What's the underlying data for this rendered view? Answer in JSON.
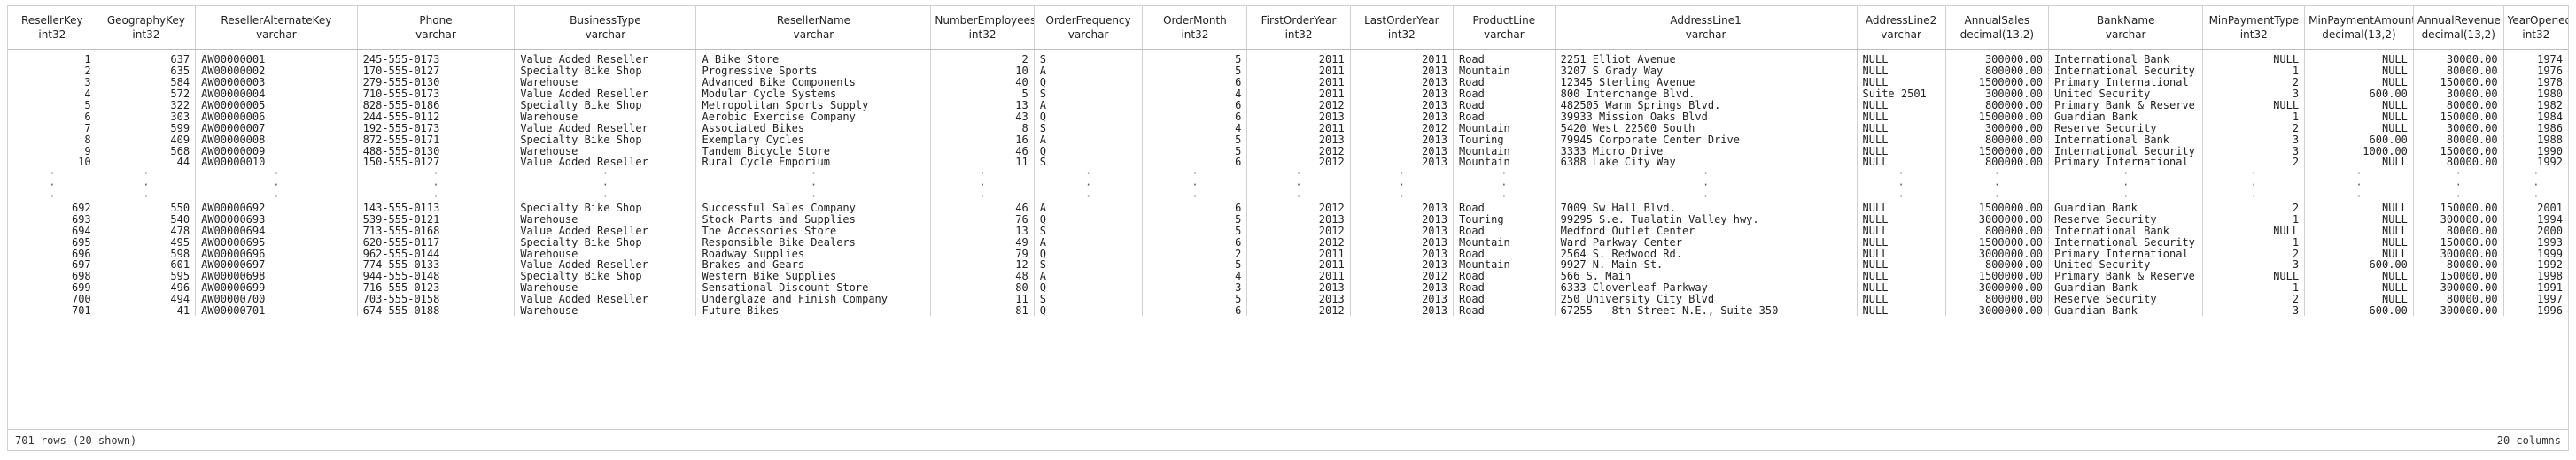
{
  "columns": [
    {
      "name": "ResellerKey",
      "type": "int32",
      "align": "r"
    },
    {
      "name": "GeographyKey",
      "type": "int32",
      "align": "r"
    },
    {
      "name": "ResellerAlternateKey",
      "type": "varchar",
      "align": "l"
    },
    {
      "name": "Phone",
      "type": "varchar",
      "align": "l"
    },
    {
      "name": "BusinessType",
      "type": "varchar",
      "align": "l"
    },
    {
      "name": "ResellerName",
      "type": "varchar",
      "align": "l"
    },
    {
      "name": "NumberEmployees",
      "type": "int32",
      "align": "r"
    },
    {
      "name": "OrderFrequency",
      "type": "varchar",
      "align": "l"
    },
    {
      "name": "OrderMonth",
      "type": "int32",
      "align": "r"
    },
    {
      "name": "FirstOrderYear",
      "type": "int32",
      "align": "r"
    },
    {
      "name": "LastOrderYear",
      "type": "int32",
      "align": "r"
    },
    {
      "name": "ProductLine",
      "type": "varchar",
      "align": "l"
    },
    {
      "name": "AddressLine1",
      "type": "varchar",
      "align": "l"
    },
    {
      "name": "AddressLine2",
      "type": "varchar",
      "align": "l"
    },
    {
      "name": "AnnualSales",
      "type": "decimal(13,2)",
      "align": "r"
    },
    {
      "name": "BankName",
      "type": "varchar",
      "align": "l"
    },
    {
      "name": "MinPaymentType",
      "type": "int32",
      "align": "r"
    },
    {
      "name": "MinPaymentAmount",
      "type": "decimal(13,2)",
      "align": "r"
    },
    {
      "name": "AnnualRevenue",
      "type": "decimal(13,2)",
      "align": "r"
    },
    {
      "name": "YearOpened",
      "type": "int32",
      "align": "r"
    }
  ],
  "rows_top": [
    [
      "1",
      "637",
      "AW00000001",
      "245-555-0173",
      "Value Added Reseller",
      "A Bike Store",
      "2",
      "S",
      "5",
      "2011",
      "2011",
      "Road",
      "2251 Elliot Avenue",
      "NULL",
      "300000.00",
      "International Bank",
      "NULL",
      "NULL",
      "30000.00",
      "1974"
    ],
    [
      "2",
      "635",
      "AW00000002",
      "170-555-0127",
      "Specialty Bike Shop",
      "Progressive Sports",
      "10",
      "A",
      "5",
      "2011",
      "2013",
      "Mountain",
      "3207 S Grady Way",
      "NULL",
      "800000.00",
      "International Security",
      "1",
      "NULL",
      "80000.00",
      "1976"
    ],
    [
      "3",
      "584",
      "AW00000003",
      "279-555-0130",
      "Warehouse",
      "Advanced Bike Components",
      "40",
      "Q",
      "6",
      "2011",
      "2013",
      "Road",
      "12345 Sterling Avenue",
      "NULL",
      "1500000.00",
      "Primary International",
      "2",
      "NULL",
      "150000.00",
      "1978"
    ],
    [
      "4",
      "572",
      "AW00000004",
      "710-555-0173",
      "Value Added Reseller",
      "Modular Cycle Systems",
      "5",
      "S",
      "4",
      "2011",
      "2013",
      "Road",
      "800 Interchange Blvd.",
      "Suite 2501",
      "300000.00",
      "United Security",
      "3",
      "600.00",
      "30000.00",
      "1980"
    ],
    [
      "5",
      "322",
      "AW00000005",
      "828-555-0186",
      "Specialty Bike Shop",
      "Metropolitan Sports Supply",
      "13",
      "A",
      "6",
      "2012",
      "2013",
      "Road",
      "482505 Warm Springs Blvd.",
      "NULL",
      "800000.00",
      "Primary Bank & Reserve",
      "NULL",
      "NULL",
      "80000.00",
      "1982"
    ],
    [
      "6",
      "303",
      "AW00000006",
      "244-555-0112",
      "Warehouse",
      "Aerobic Exercise Company",
      "43",
      "Q",
      "6",
      "2013",
      "2013",
      "Road",
      "39933 Mission Oaks Blvd",
      "NULL",
      "1500000.00",
      "Guardian Bank",
      "1",
      "NULL",
      "150000.00",
      "1984"
    ],
    [
      "7",
      "599",
      "AW00000007",
      "192-555-0173",
      "Value Added Reseller",
      "Associated Bikes",
      "8",
      "S",
      "4",
      "2011",
      "2012",
      "Mountain",
      "5420 West 22500 South",
      "NULL",
      "300000.00",
      "Reserve Security",
      "2",
      "NULL",
      "30000.00",
      "1986"
    ],
    [
      "8",
      "409",
      "AW00000008",
      "872-555-0171",
      "Specialty Bike Shop",
      "Exemplary Cycles",
      "16",
      "A",
      "5",
      "2013",
      "2013",
      "Touring",
      "79945 Corporate Center Drive",
      "NULL",
      "800000.00",
      "International Bank",
      "3",
      "600.00",
      "80000.00",
      "1988"
    ],
    [
      "9",
      "568",
      "AW00000009",
      "488-555-0130",
      "Warehouse",
      "Tandem Bicycle Store",
      "46",
      "Q",
      "5",
      "2012",
      "2013",
      "Mountain",
      "3333 Micro Drive",
      "NULL",
      "1500000.00",
      "International Security",
      "3",
      "1000.00",
      "150000.00",
      "1990"
    ],
    [
      "10",
      "44",
      "AW00000010",
      "150-555-0127",
      "Value Added Reseller",
      "Rural Cycle Emporium",
      "11",
      "S",
      "6",
      "2012",
      "2013",
      "Mountain",
      "6388 Lake City Way",
      "NULL",
      "800000.00",
      "Primary International",
      "2",
      "NULL",
      "80000.00",
      "1992"
    ]
  ],
  "rows_bottom": [
    [
      "692",
      "550",
      "AW00000692",
      "143-555-0113",
      "Specialty Bike Shop",
      "Successful Sales Company",
      "46",
      "A",
      "6",
      "2012",
      "2013",
      "Road",
      "7009 Sw Hall Blvd.",
      "NULL",
      "1500000.00",
      "Guardian Bank",
      "2",
      "NULL",
      "150000.00",
      "2001"
    ],
    [
      "693",
      "540",
      "AW00000693",
      "539-555-0121",
      "Warehouse",
      "Stock Parts and Supplies",
      "76",
      "Q",
      "5",
      "2013",
      "2013",
      "Touring",
      "99295 S.e. Tualatin Valley_hwy.",
      "NULL",
      "3000000.00",
      "Reserve Security",
      "1",
      "NULL",
      "300000.00",
      "1994"
    ],
    [
      "694",
      "478",
      "AW00000694",
      "713-555-0168",
      "Value Added Reseller",
      "The Accessories Store",
      "13",
      "S",
      "5",
      "2012",
      "2013",
      "Road",
      "Medford Outlet Center",
      "NULL",
      "800000.00",
      "International Bank",
      "NULL",
      "NULL",
      "80000.00",
      "2000"
    ],
    [
      "695",
      "495",
      "AW00000695",
      "620-555-0117",
      "Specialty Bike Shop",
      "Responsible Bike Dealers",
      "49",
      "A",
      "6",
      "2012",
      "2013",
      "Mountain",
      "Ward Parkway Center",
      "NULL",
      "1500000.00",
      "International Security",
      "1",
      "NULL",
      "150000.00",
      "1993"
    ],
    [
      "696",
      "598",
      "AW00000696",
      "962-555-0144",
      "Warehouse",
      "Roadway Supplies",
      "79",
      "Q",
      "2",
      "2011",
      "2013",
      "Road",
      "2564 S. Redwood Rd.",
      "NULL",
      "3000000.00",
      "Primary International",
      "2",
      "NULL",
      "300000.00",
      "1999"
    ],
    [
      "697",
      "601",
      "AW00000697",
      "774-555-0133",
      "Value Added Reseller",
      "Brakes and Gears",
      "12",
      "S",
      "5",
      "2011",
      "2013",
      "Mountain",
      "9927 N. Main St.",
      "NULL",
      "800000.00",
      "United Security",
      "3",
      "600.00",
      "80000.00",
      "1992"
    ],
    [
      "698",
      "595",
      "AW00000698",
      "944-555-0148",
      "Specialty Bike Shop",
      "Western Bike Supplies",
      "48",
      "A",
      "4",
      "2011",
      "2012",
      "Road",
      "566 S. Main",
      "NULL",
      "1500000.00",
      "Primary Bank & Reserve",
      "NULL",
      "NULL",
      "150000.00",
      "1998"
    ],
    [
      "699",
      "496",
      "AW00000699",
      "716-555-0123",
      "Warehouse",
      "Sensational Discount Store",
      "80",
      "Q",
      "3",
      "2013",
      "2013",
      "Road",
      "6333 Cloverleaf Parkway",
      "NULL",
      "3000000.00",
      "Guardian Bank",
      "1",
      "NULL",
      "300000.00",
      "1991"
    ],
    [
      "700",
      "494",
      "AW00000700",
      "703-555-0158",
      "Value Added Reseller",
      "Underglaze and Finish Company",
      "11",
      "S",
      "5",
      "2013",
      "2013",
      "Road",
      "250 University City Blvd",
      "NULL",
      "800000.00",
      "Reserve Security",
      "2",
      "NULL",
      "80000.00",
      "1997"
    ],
    [
      "701",
      "41",
      "AW00000701",
      "674-555-0188",
      "Warehouse",
      "Future Bikes",
      "81",
      "Q",
      "6",
      "2012",
      "2013",
      "Road",
      "67255 - 8th Street N.E., Suite 350",
      "NULL",
      "3000000.00",
      "Guardian Bank",
      "3",
      "600.00",
      "300000.00",
      "1996"
    ]
  ],
  "ellipsis_glyph": "·",
  "footer": {
    "rows_summary": "701 rows (20 shown)",
    "columns_summary": "20 columns"
  }
}
